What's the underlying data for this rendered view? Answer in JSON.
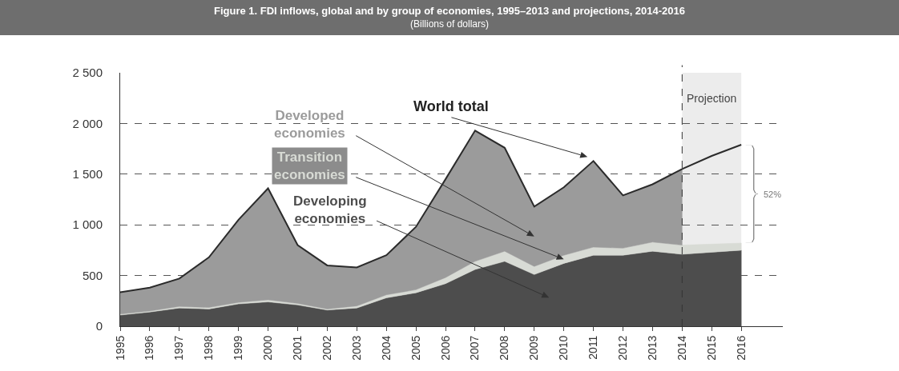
{
  "chart_data": {
    "type": "area",
    "title": "Figure 1. FDI inflows, global and by group of economies, 1995–2013 and projections, 2014-2016",
    "subtitle": "(Billions of dollars)",
    "categories": [
      "1995",
      "1996",
      "1997",
      "1998",
      "1999",
      "2000",
      "2001",
      "2002",
      "2003",
      "2004",
      "2005",
      "2006",
      "2007",
      "2008",
      "2009",
      "2010",
      "2011",
      "2012",
      "2013",
      "2014",
      "2015",
      "2016"
    ],
    "stacked": true,
    "series": [
      {
        "name": "Developing economies",
        "color": "#4d4d4d",
        "values": [
          110,
          140,
          180,
          170,
          220,
          240,
          210,
          160,
          180,
          280,
          330,
          420,
          560,
          640,
          510,
          620,
          700,
          700,
          740,
          710,
          730,
          750
        ]
      },
      {
        "name": "Transition economies",
        "color": "#d8dbd5",
        "values": [
          10,
          10,
          15,
          15,
          15,
          20,
          15,
          10,
          20,
          30,
          30,
          60,
          80,
          100,
          80,
          80,
          80,
          70,
          90,
          90,
          80,
          70
        ]
      },
      {
        "name": "Developed economies",
        "color": "#9b9b9b",
        "values": [
          215,
          230,
          275,
          495,
          815,
          1100,
          575,
          430,
          380,
          390,
          620,
          970,
          1290,
          1020,
          590,
          670,
          850,
          520,
          570,
          750,
          null,
          null
        ]
      },
      {
        "name": "World total",
        "type": "line",
        "color": "#2b2b2b",
        "values": [
          335,
          380,
          470,
          680,
          1050,
          1360,
          800,
          600,
          580,
          700,
          980,
          1450,
          1930,
          1760,
          1180,
          1370,
          1630,
          1290,
          1400,
          1550,
          1680,
          1790
        ]
      }
    ],
    "ylim": [
      0,
      2500
    ],
    "yticks": [
      0,
      500,
      {
        "value": 1000,
        "label": "1 000"
      },
      {
        "value": 1500,
        "label": "1 500"
      },
      {
        "value": 2000,
        "label": "2 000"
      },
      {
        "value": 2500,
        "label": "2 500"
      }
    ],
    "grid": "y",
    "legend": false,
    "bands": [
      {
        "axis": "x",
        "from": "2014",
        "to": "2016",
        "label": "Projection",
        "color": "#ececec"
      }
    ],
    "ref_lines": [
      {
        "axis": "x",
        "value": "2014",
        "color": "#333333",
        "line_style": "dashed"
      }
    ],
    "annotations": [
      "52%"
    ]
  }
}
